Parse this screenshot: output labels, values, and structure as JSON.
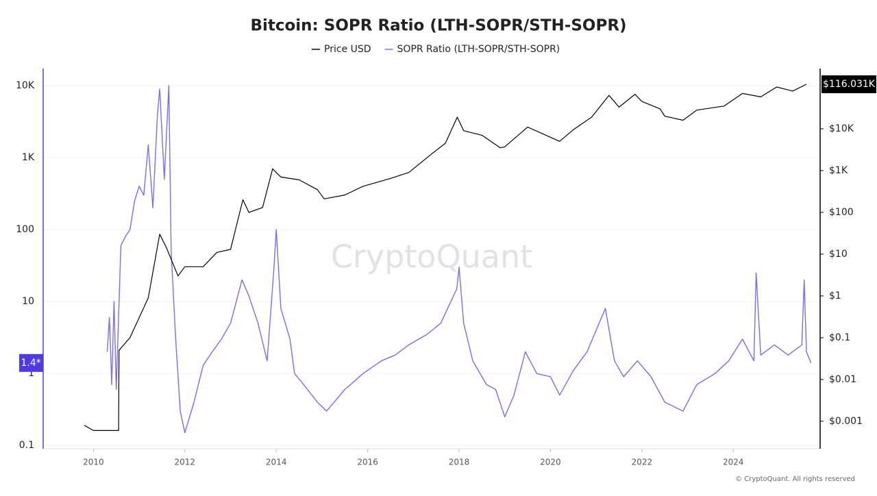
{
  "chart_data": {
    "type": "line",
    "title": "Bitcoin: SOPR Ratio (LTH-SOPR/STH-SOPR)",
    "watermark": "CryptoQuant",
    "credit": "© CryptoQuant. All rights reserved",
    "log_scale": true,
    "xlim": [
      2008.9,
      2025.9
    ],
    "xticks": [
      2010,
      2012,
      2014,
      2016,
      2018,
      2020,
      2022,
      2024
    ],
    "ylim": [
      0.09,
      17300
    ],
    "yticks": [
      0.1,
      1,
      10,
      100,
      {
        "value": 1000,
        "label": "1K"
      },
      {
        "value": 10000,
        "label": "10K"
      }
    ],
    "y2lim": [
      0.00022,
      277000
    ],
    "y2ticks": [
      {
        "value": 0.001,
        "label": "$0.001"
      },
      {
        "value": 0.01,
        "label": "$0.01"
      },
      {
        "value": 0.1,
        "label": "$0.1"
      },
      {
        "value": 1,
        "label": "$1"
      },
      {
        "value": 10,
        "label": "$10"
      },
      {
        "value": 100,
        "label": "$100"
      },
      {
        "value": 1000,
        "label": "$1K"
      },
      {
        "value": 10000,
        "label": "$10K"
      }
    ],
    "y_marker": {
      "value": 1.4,
      "label": "1.4*"
    },
    "y2_marker": {
      "value": 116031,
      "label": "$116.031K"
    },
    "series": [
      {
        "name": "Price USD",
        "color": "#000000",
        "axis": "y2",
        "x": [
          2009.8,
          2010.0,
          2010.55,
          2010.56,
          2010.8,
          2011.0,
          2011.2,
          2011.45,
          2011.6,
          2011.85,
          2012.0,
          2012.4,
          2012.7,
          2013.0,
          2013.27,
          2013.4,
          2013.7,
          2013.92,
          2014.1,
          2014.5,
          2014.9,
          2015.05,
          2015.5,
          2015.9,
          2016.5,
          2016.9,
          2017.4,
          2017.7,
          2017.96,
          2018.1,
          2018.5,
          2018.9,
          2019.0,
          2019.5,
          2019.9,
          2020.2,
          2020.5,
          2020.9,
          2021.28,
          2021.5,
          2021.85,
          2022.0,
          2022.4,
          2022.5,
          2022.9,
          2023.2,
          2023.8,
          2024.2,
          2024.6,
          2024.95,
          2025.3,
          2025.6
        ],
        "values": [
          0.0008,
          0.0006,
          0.0006,
          0.05,
          0.1,
          0.3,
          0.9,
          30,
          14,
          3,
          5,
          5,
          11,
          13,
          200,
          100,
          130,
          1100,
          700,
          600,
          350,
          210,
          260,
          420,
          650,
          900,
          2500,
          4500,
          19000,
          9000,
          7000,
          3500,
          3700,
          11000,
          7000,
          5000,
          9500,
          19000,
          63000,
          33000,
          67000,
          45000,
          30000,
          20000,
          16000,
          28000,
          35000,
          70000,
          58000,
          100000,
          80000,
          116031
        ]
      },
      {
        "name": "SOPR Ratio (LTH-SOPR/STH-SOPR)",
        "color": "#7b6cf0",
        "x": [
          2010.3,
          2010.35,
          2010.4,
          2010.45,
          2010.5,
          2010.6,
          2010.7,
          2010.8,
          2010.9,
          2011.0,
          2011.1,
          2011.2,
          2011.3,
          2011.4,
          2011.45,
          2011.55,
          2011.65,
          2011.7,
          2011.8,
          2011.9,
          2012.0,
          2012.2,
          2012.4,
          2012.6,
          2012.8,
          2013.0,
          2013.25,
          2013.4,
          2013.6,
          2013.8,
          2013.95,
          2014.0,
          2014.1,
          2014.3,
          2014.4,
          2014.6,
          2014.9,
          2015.1,
          2015.5,
          2015.9,
          2016.3,
          2016.6,
          2016.9,
          2017.3,
          2017.6,
          2017.95,
          2018.0,
          2018.1,
          2018.3,
          2018.6,
          2018.8,
          2019.0,
          2019.2,
          2019.45,
          2019.7,
          2020.0,
          2020.2,
          2020.5,
          2020.8,
          2021.2,
          2021.4,
          2021.6,
          2021.9,
          2022.2,
          2022.5,
          2022.9,
          2023.2,
          2023.6,
          2023.9,
          2024.2,
          2024.45,
          2024.5,
          2024.6,
          2024.9,
          2025.2,
          2025.5,
          2025.55,
          2025.6,
          2025.7
        ],
        "values": [
          2,
          6,
          0.7,
          10,
          0.6,
          60,
          80,
          100,
          250,
          400,
          300,
          1500,
          200,
          4000,
          9000,
          500,
          10000,
          50,
          3,
          0.3,
          0.15,
          0.4,
          1.3,
          2,
          3,
          5,
          20,
          12,
          5,
          1.5,
          30,
          100,
          8,
          3,
          1,
          0.7,
          0.4,
          0.3,
          0.6,
          1,
          1.5,
          1.8,
          2.5,
          3.5,
          5,
          15,
          30,
          5,
          1.5,
          0.7,
          0.6,
          0.25,
          0.5,
          2,
          1,
          0.9,
          0.5,
          1.1,
          2,
          8,
          1.5,
          0.9,
          1.5,
          0.9,
          0.4,
          0.3,
          0.7,
          1,
          1.5,
          3,
          1.5,
          25,
          1.8,
          2.5,
          1.8,
          2.5,
          20,
          2,
          1.4
        ]
      }
    ]
  }
}
